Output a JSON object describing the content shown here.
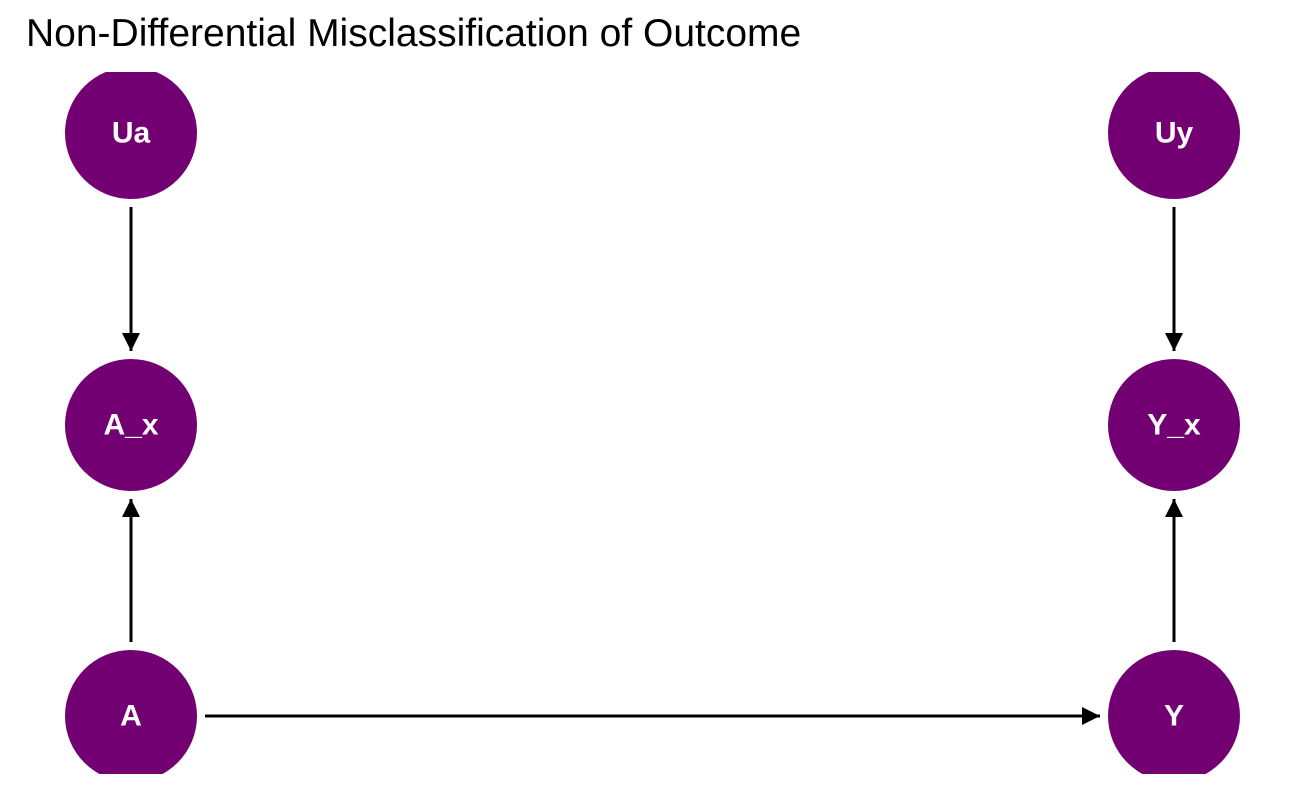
{
  "title": "Non-Differential Misclassification of Outcome",
  "colors": {
    "node_fill": "#730073",
    "node_text": "#ffffff",
    "edge": "#000000",
    "background": "#ffffff"
  },
  "nodes": [
    {
      "id": "Ua",
      "label": "Ua"
    },
    {
      "id": "Uy",
      "label": "Uy"
    },
    {
      "id": "A_x",
      "label": "A_x"
    },
    {
      "id": "Y_x",
      "label": "Y_x"
    },
    {
      "id": "A",
      "label": "A"
    },
    {
      "id": "Y",
      "label": "Y"
    }
  ],
  "edges": [
    {
      "from": "Ua",
      "to": "A_x"
    },
    {
      "from": "A",
      "to": "A_x"
    },
    {
      "from": "Uy",
      "to": "Y_x"
    },
    {
      "from": "Y",
      "to": "Y_x"
    },
    {
      "from": "A",
      "to": "Y"
    }
  ]
}
